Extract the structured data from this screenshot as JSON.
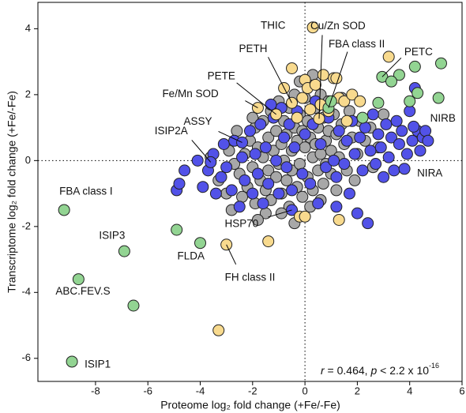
{
  "chart_data": {
    "type": "scatter",
    "x_label": "Proteome log₂ fold change (+Fe/-Fe)",
    "y_label": "Transcriptome log₂ fold change (+Fe/-Fe)",
    "xlim": [
      -10.2,
      6
    ],
    "ylim": [
      -6.7,
      4.8
    ],
    "xticks": [
      -8,
      -6,
      -4,
      -2,
      0,
      2,
      4,
      6
    ],
    "yticks": [
      -6,
      -4,
      -2,
      0,
      2,
      4
    ],
    "hline": 0,
    "vline": 0,
    "stat_parts": [
      "r",
      " = 0.464, ",
      "p",
      " < 2.2 x 10",
      "-16"
    ],
    "series": [
      {
        "color": "#a8a8a8",
        "x": [
          -3.3,
          -3.0,
          -2.9,
          -2.8,
          -2.6,
          -2.5,
          -2.4,
          -2.3,
          -2.2,
          -2.1,
          -2.0,
          -1.9,
          -1.9,
          -1.8,
          -1.7,
          -1.6,
          -1.6,
          -1.5,
          -1.4,
          -1.4,
          -1.3,
          -1.3,
          -1.2,
          -1.1,
          -1.1,
          -1.0,
          -1.0,
          -0.9,
          -0.9,
          -0.8,
          -0.8,
          -0.7,
          -0.7,
          -0.6,
          -0.6,
          -0.5,
          -0.5,
          -0.4,
          -0.4,
          -0.3,
          -0.3,
          -0.2,
          -0.2,
          -0.1,
          -0.1,
          0.0,
          0.0,
          0.1,
          0.1,
          0.2,
          0.2,
          0.3,
          0.3,
          0.4,
          0.4,
          0.5,
          0.5,
          0.6,
          0.6,
          0.7,
          0.7,
          0.8,
          0.8,
          0.9,
          0.9,
          1.0,
          1.0,
          1.1,
          1.2,
          1.2,
          1.3,
          1.4,
          1.5,
          1.6,
          1.7,
          1.8,
          2.0,
          2.1,
          2.3,
          2.5,
          2.8,
          3.0,
          -2.7,
          -2.0,
          -1.5,
          -0.9,
          0.2,
          -3.6,
          -1.8,
          0.6,
          1.9,
          -0.4,
          0.3,
          -0.2,
          1.4,
          2.6
        ],
        "y": [
          -0.6,
          -1.0,
          0.3,
          -1.5,
          0.9,
          -0.4,
          -1.1,
          0.2,
          -0.8,
          0.6,
          -0.2,
          1.0,
          -1.3,
          0.4,
          -0.6,
          0.1,
          1.2,
          -0.9,
          0.7,
          -0.3,
          1.5,
          -1.2,
          0.3,
          -0.5,
          0.9,
          1.8,
          -0.1,
          0.5,
          -1.0,
          1.2,
          0.0,
          -0.6,
          0.8,
          1.6,
          -1.4,
          0.3,
          -0.3,
          1.0,
          2.0,
          -0.8,
          0.6,
          1.4,
          -0.1,
          0.9,
          -1.1,
          0.4,
          1.9,
          -0.5,
          1.2,
          0.7,
          2.3,
          0.1,
          -0.9,
          1.6,
          0.5,
          -0.3,
          1.0,
          2.0,
          0.2,
          -0.7,
          1.3,
          0.6,
          -0.1,
          1.8,
          0.9,
          -0.4,
          0.3,
          1.4,
          0.8,
          -0.9,
          0.1,
          1.1,
          0.5,
          -0.3,
          1.5,
          0.7,
          0.2,
          1.2,
          0.6,
          1.0,
          0.4,
          1.4,
          -0.1,
          1.3,
          -1.6,
          -1.6,
          -1.4,
          0.1,
          -1.8,
          -1.2,
          -0.6,
          -1.9,
          2.6,
          2.4,
          1.9,
          -0.2
        ]
      },
      {
        "color": "#5252e8",
        "x": [
          -4.9,
          -4.8,
          -4.6,
          -4.1,
          -3.9,
          -3.7,
          -3.5,
          -3.4,
          -3.2,
          -3.1,
          -3.0,
          -2.8,
          -2.7,
          -2.5,
          -2.4,
          -2.3,
          -2.1,
          -2.0,
          -1.9,
          -1.8,
          -1.7,
          -1.6,
          -1.5,
          -1.4,
          -1.2,
          -1.1,
          -1.0,
          -0.9,
          -0.8,
          -0.7,
          -0.6,
          -0.5,
          -0.4,
          -0.3,
          -0.1,
          0.0,
          0.2,
          0.3,
          0.5,
          0.6,
          0.8,
          0.9,
          1.1,
          1.2,
          1.3,
          1.5,
          1.6,
          1.7,
          1.8,
          1.9,
          2.0,
          2.1,
          2.2,
          2.3,
          2.4,
          2.5,
          2.6,
          2.7,
          2.8,
          2.9,
          3.0,
          3.1,
          3.2,
          3.3,
          3.4,
          3.5,
          3.6,
          3.7,
          3.9,
          4.0,
          4.1,
          4.3,
          4.4,
          4.5,
          4.6,
          4.7,
          4.2,
          3.8,
          4.15,
          -3.6,
          -2.4,
          -0.5,
          1.2,
          0.4,
          -1.3
        ],
        "y": [
          -0.9,
          -0.7,
          -0.3,
          0.0,
          -0.8,
          -0.3,
          0.2,
          -1.0,
          -0.5,
          0.5,
          -0.2,
          -0.9,
          0.6,
          -1.4,
          0.1,
          -0.6,
          0.9,
          -1.0,
          0.2,
          -0.4,
          1.1,
          -1.3,
          0.4,
          -0.7,
          1.3,
          0.0,
          -1.0,
          1.6,
          0.7,
          -0.2,
          1.1,
          -0.9,
          0.4,
          1.5,
          -0.4,
          0.8,
          -0.7,
          1.1,
          -1.3,
          0.5,
          -0.2,
          1.3,
          0.0,
          -0.5,
          0.9,
          -0.1,
          0.6,
          -1.0,
          1.2,
          0.2,
          -1.6,
          0.7,
          -0.3,
          1.0,
          -1.9,
          0.3,
          1.4,
          -0.1,
          0.8,
          0.4,
          -0.5,
          1.1,
          0.1,
          0.7,
          -0.3,
          1.2,
          0.5,
          0.9,
          0.2,
          1.5,
          0.6,
          0.9,
          0.3,
          0.7,
          0.9,
          0.6,
          2.2,
          -0.25,
          1.03,
          -0.05,
          0.55,
          -1.5,
          -1.4,
          1.8,
          1.7
        ]
      },
      {
        "color": "#f8da8e",
        "x": [
          0.3,
          0.54,
          -0.5,
          -1.1,
          -1.8,
          -3.0,
          -3.3,
          -1.4,
          -0.2,
          0.0,
          1.3,
          3.2,
          -0.5,
          0.0,
          0.1,
          -0.1,
          0.4,
          0.7,
          1.1,
          1.3,
          1.5,
          1.8,
          2.1,
          0.9,
          0.6,
          -0.3,
          1.6,
          -0.8,
          0.2,
          1.2
        ],
        "y": [
          4.04,
          1.27,
          1.75,
          1.4,
          1.6,
          -2.55,
          -5.15,
          -2.45,
          -1.7,
          -1.7,
          -1.8,
          3.15,
          2.8,
          2.45,
          2.2,
          1.9,
          2.3,
          2.6,
          2.5,
          1.9,
          1.8,
          2.0,
          1.8,
          1.5,
          1.7,
          1.3,
          1.2,
          2.2,
          1.55,
          2.5
        ]
      },
      {
        "color": "#92d492",
        "x": [
          0.9,
          2.95,
          -9.2,
          -6.9,
          -4.0,
          -8.65,
          -8.9,
          -4.9,
          -6.55,
          5.2,
          5.1,
          4.2,
          3.6,
          3.3,
          4.0,
          4.3,
          2.8,
          1.0,
          2.2
        ],
        "y": [
          1.6,
          2.54,
          -1.5,
          -2.75,
          -2.5,
          -3.6,
          -6.1,
          -2.1,
          -4.4,
          2.95,
          1.9,
          2.85,
          2.6,
          2.4,
          1.8,
          2.05,
          1.75,
          1.8,
          1.3
        ]
      }
    ],
    "labels": [
      {
        "text": "THIC",
        "x": 0.3,
        "y": 4.04
      },
      {
        "text": "Cu/Zn SOD",
        "x": 0.54,
        "y": 1.27
      },
      {
        "text": "FBA class II",
        "x": 0.9,
        "y": 1.6
      },
      {
        "text": "PETC",
        "x": 2.95,
        "y": 2.54
      },
      {
        "text": "PETH",
        "x": -0.5,
        "y": 1.75
      },
      {
        "text": "PETE",
        "x": -1.1,
        "y": 1.4
      },
      {
        "text": "Fe/Mn SOD",
        "x": -1.8,
        "y": 1.6
      },
      {
        "text": "ASSY",
        "x": -2.4,
        "y": 0.55
      },
      {
        "text": "ISIP2A",
        "x": -3.6,
        "y": -0.05
      },
      {
        "text": "NIRB",
        "x": 4.15,
        "y": 1.03
      },
      {
        "text": "NIRA",
        "x": 3.8,
        "y": -0.25
      },
      {
        "text": "HSP70",
        "x": -0.5,
        "y": -1.5
      },
      {
        "text": "FBA class I",
        "x": -9.2,
        "y": -1.5
      },
      {
        "text": "ISIP3",
        "x": -6.9,
        "y": -2.75
      },
      {
        "text": "FLDA",
        "x": -4.0,
        "y": -2.5
      },
      {
        "text": "FH class II",
        "x": -3.0,
        "y": -2.55
      },
      {
        "text": "ABC.FEV.S",
        "x": -8.65,
        "y": -3.6
      },
      {
        "text": "ISIP1",
        "x": -8.9,
        "y": -6.1
      }
    ]
  }
}
